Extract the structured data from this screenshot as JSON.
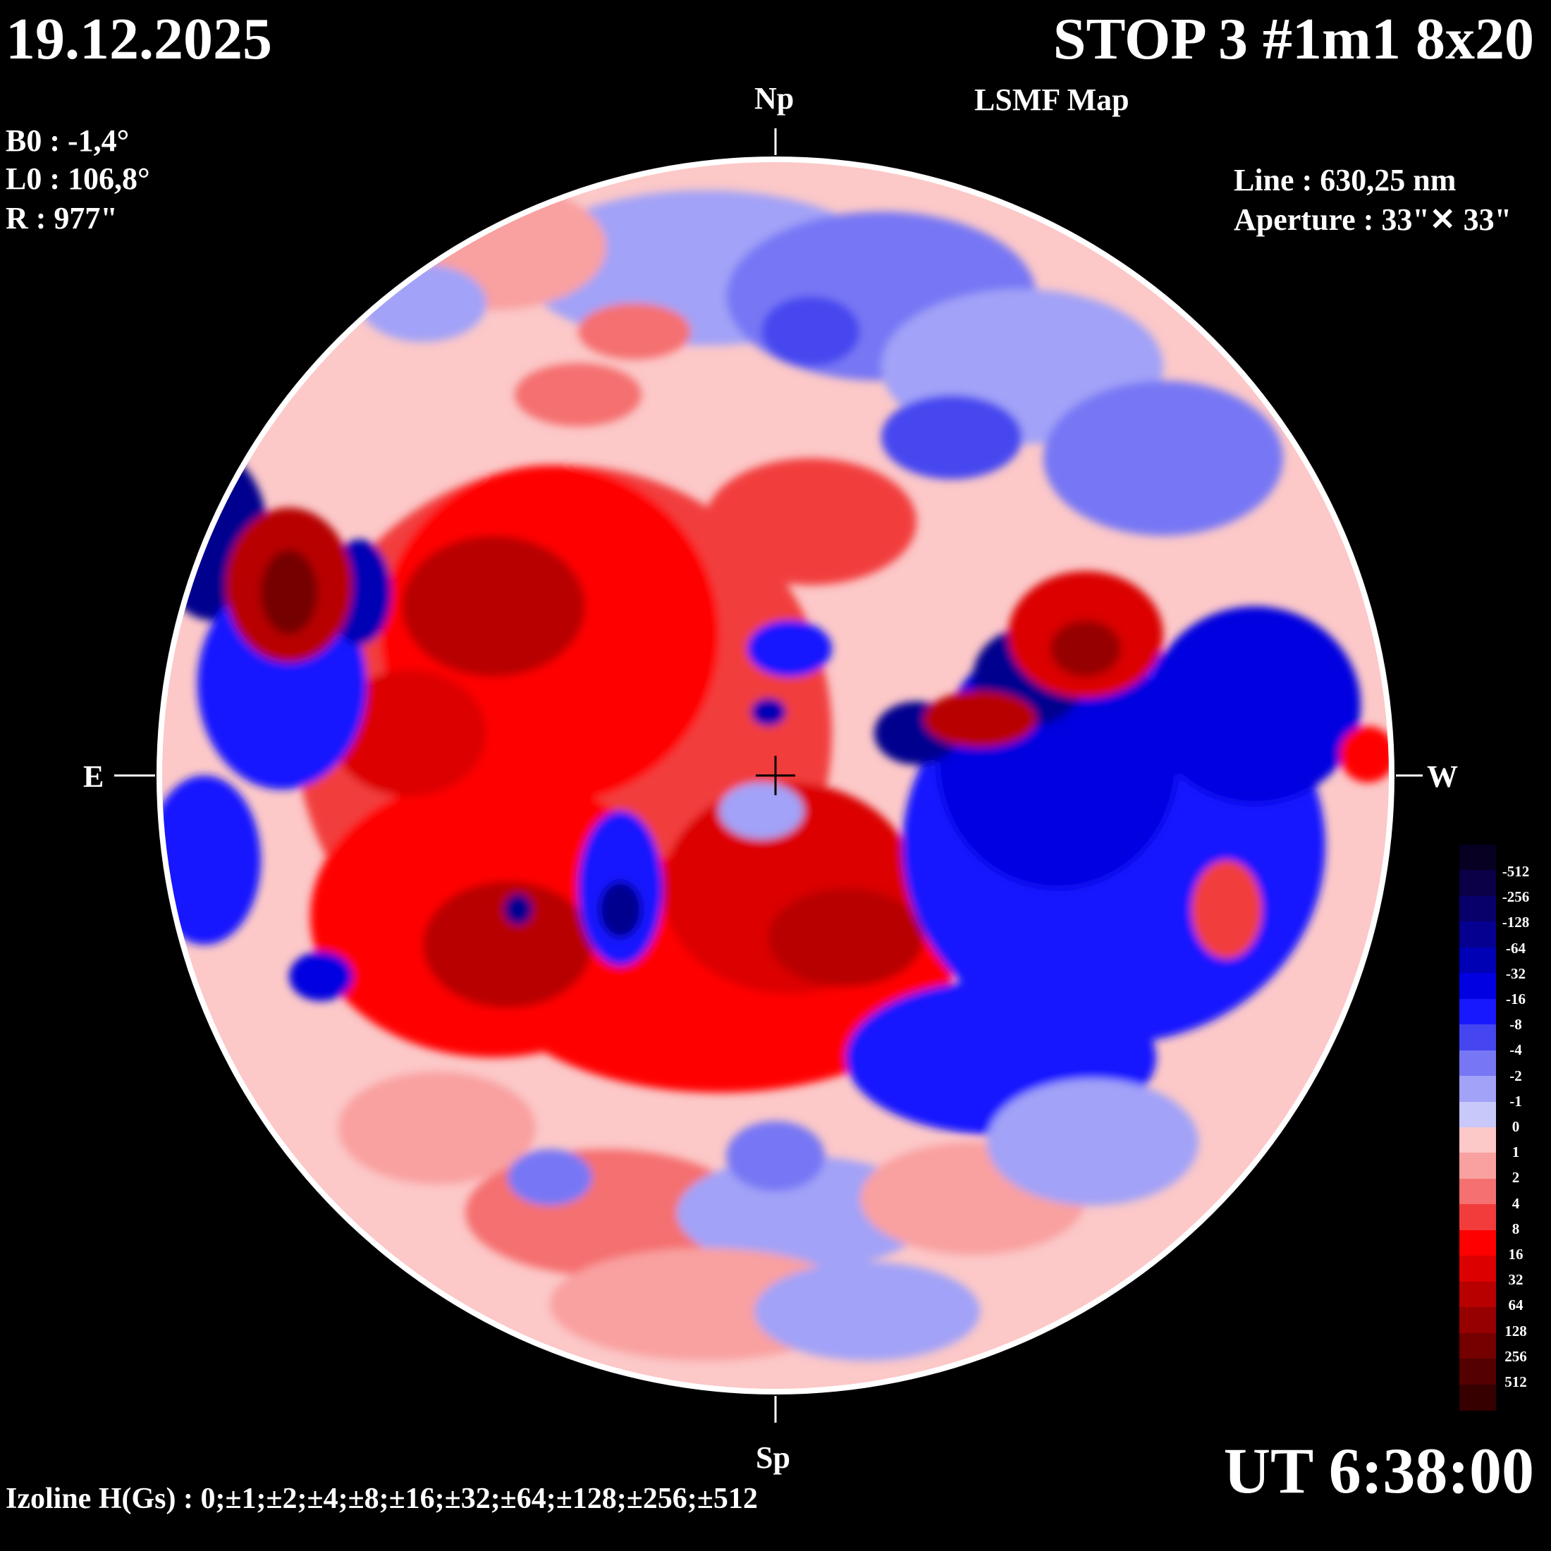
{
  "header": {
    "date": "19.12.2025",
    "title": "STOP 3 #1m1 8x20",
    "subtitle": "LSMF  Map"
  },
  "ephemeris": {
    "b0": "B0 : -1,4°",
    "l0": "L0 : 106,8°",
    "r": "R  : 977\""
  },
  "instrument": {
    "line": "Line :  630,25 nm",
    "aperture": "Aperture : 33\"✕ 33\""
  },
  "directions": {
    "north": "Np",
    "south": "Sp",
    "east": "E",
    "west": "W"
  },
  "time": "UT 6:38:00",
  "izoline": "Izoline H(Gs) : 0;±1;±2;±4;±8;±16;±32;±64;±128;±256;±512",
  "colorbar": {
    "labels": [
      "-512",
      "-256",
      "-128",
      "-64",
      "-32",
      "-16",
      "-8",
      "-4",
      "-2",
      "-1",
      "0",
      "1",
      "2",
      "4",
      "8",
      "16",
      "32",
      "64",
      "128",
      "256",
      "512"
    ],
    "negative_colors": [
      "#070022",
      "#0b0048",
      "#08006a",
      "#05008f",
      "#0000b4",
      "#0000e0",
      "#1818ff",
      "#4646f0",
      "#7777f5",
      "#a2a2f8",
      "#c8c8fb"
    ],
    "positive_colors": [
      "#fcc8c8",
      "#f9a0a0",
      "#f57070",
      "#f23c3c",
      "#ff0000",
      "#dc0000",
      "#b80000",
      "#960000",
      "#740000",
      "#540000",
      "#360000"
    ]
  }
}
